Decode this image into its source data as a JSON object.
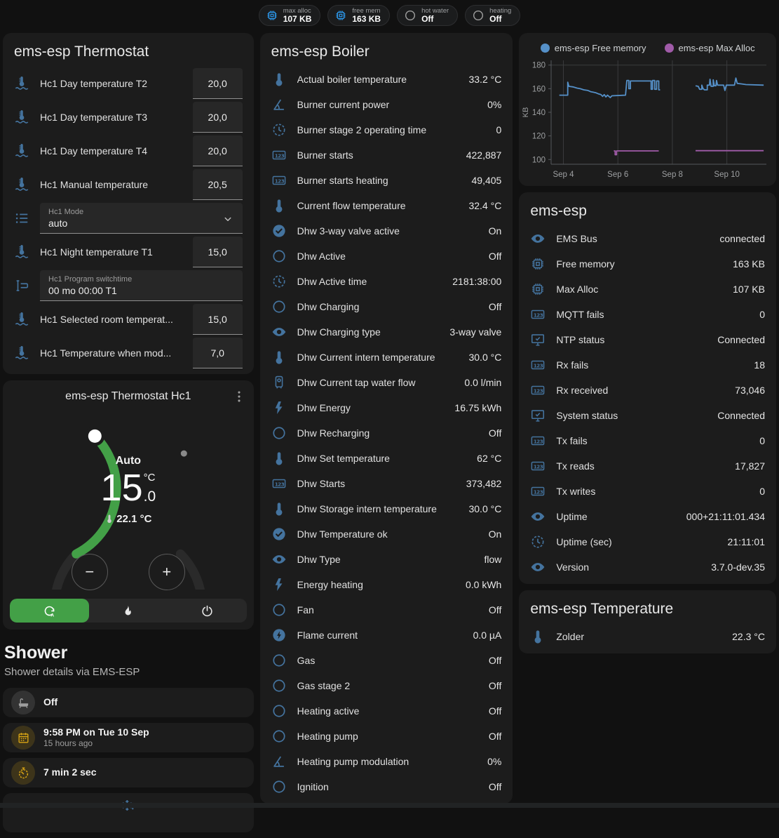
{
  "colors": {
    "icon_blue": "#44739e",
    "badge_blue": "#2d9bf0",
    "badge_gray": "#9e9e9e",
    "amber": "#d9a514",
    "gray": "#9e9e9e",
    "green": "#43a047",
    "track": "#2a2a2a",
    "free_memory_line": "#5590c8",
    "max_alloc_line": "#a05ba8"
  },
  "badges": [
    {
      "icon": "chip",
      "icon_color": "#2d9bf0",
      "label": "max alloc",
      "value": "107 KB"
    },
    {
      "icon": "chip",
      "icon_color": "#2d9bf0",
      "label": "free mem",
      "value": "163 KB"
    },
    {
      "icon": "circle",
      "icon_color": "#9e9e9e",
      "label": "hot water",
      "value": "Off"
    },
    {
      "icon": "circle",
      "icon_color": "#9e9e9e",
      "label": "heating",
      "value": "Off"
    }
  ],
  "thermostat": {
    "title": "ems-esp Thermostat",
    "rows": [
      {
        "type": "number",
        "icon": "thermometer-water",
        "label": "Hc1 Day temperature T2",
        "value": "20,0"
      },
      {
        "type": "number",
        "icon": "thermometer-water",
        "label": "Hc1 Day temperature T3",
        "value": "20,0"
      },
      {
        "type": "number",
        "icon": "thermometer-water",
        "label": "Hc1 Day temperature T4",
        "value": "20,0"
      },
      {
        "type": "number",
        "icon": "thermometer-water",
        "label": "Hc1 Manual temperature",
        "value": "20,5"
      },
      {
        "type": "select",
        "icon": "list",
        "label": "Hc1 Mode",
        "value": "auto"
      },
      {
        "type": "number",
        "icon": "thermometer-water",
        "label": "Hc1 Night temperature T1",
        "value": "15,0"
      },
      {
        "type": "textfield",
        "icon": "form-textbox",
        "label": "Hc1 Program switchtime",
        "value": "00 mo 00:00 T1"
      },
      {
        "type": "number",
        "icon": "thermometer-water",
        "label": "Hc1 Selected room temperat...",
        "value": "15,0"
      },
      {
        "type": "number",
        "icon": "thermometer-water",
        "label": "Hc1 Temperature when mod...",
        "value": "7,0"
      }
    ]
  },
  "dial": {
    "title": "ems-esp Thermostat Hc1",
    "mode": "Auto",
    "temp_int": "15",
    "temp_dec": ".0",
    "unit": "°C",
    "current": "22.1 °C",
    "minus": "−",
    "plus": "+",
    "modes": [
      "auto",
      "heat",
      "off"
    ],
    "active_mode": "auto"
  },
  "shower": {
    "title": "Shower",
    "subtitle": "Shower details via EMS-ESP",
    "tiles": [
      {
        "icon": "bathtub",
        "color": "#9e9e9e",
        "title": "Off",
        "subtitle": ""
      },
      {
        "icon": "calendar",
        "color": "#d9a514",
        "title": "9:58 PM on Tue 10 Sep",
        "subtitle": "15 hours ago"
      },
      {
        "icon": "timer",
        "color": "#d9a514",
        "title": "7 min 2 sec",
        "subtitle": ""
      },
      {
        "icon": "snowflake-alert",
        "color": "#44739e",
        "title": "",
        "subtitle": "",
        "centered": true
      }
    ]
  },
  "boiler": {
    "title": "ems-esp Boiler",
    "rows": [
      {
        "icon": "thermometer",
        "label": "Actual boiler temperature",
        "value": "33.2 °C"
      },
      {
        "icon": "angle-acute",
        "label": "Burner current power",
        "value": "0%"
      },
      {
        "icon": "clock",
        "label": "Burner stage 2 operating time",
        "value": "0"
      },
      {
        "icon": "counter",
        "label": "Burner starts",
        "value": "422,887"
      },
      {
        "icon": "counter",
        "label": "Burner starts heating",
        "value": "49,405"
      },
      {
        "icon": "thermometer",
        "label": "Current flow temperature",
        "value": "32.4 °C"
      },
      {
        "icon": "check-circle",
        "label": "Dhw 3-way valve active",
        "value": "On"
      },
      {
        "icon": "circle",
        "label": "Dhw Active",
        "value": "Off"
      },
      {
        "icon": "clock",
        "label": "Dhw Active time",
        "value": "2181:38:00"
      },
      {
        "icon": "circle",
        "label": "Dhw Charging",
        "value": "Off"
      },
      {
        "icon": "eye",
        "label": "Dhw Charging type",
        "value": "3-way valve"
      },
      {
        "icon": "thermometer",
        "label": "Dhw Current intern temperature",
        "value": "30.0 °C"
      },
      {
        "icon": "water-boiler",
        "label": "Dhw Current tap water flow",
        "value": "0.0 l/min"
      },
      {
        "icon": "flash",
        "label": "Dhw Energy",
        "value": "16.75 kWh"
      },
      {
        "icon": "circle",
        "label": "Dhw Recharging",
        "value": "Off"
      },
      {
        "icon": "thermometer",
        "label": "Dhw Set temperature",
        "value": "62 °C"
      },
      {
        "icon": "counter",
        "label": "Dhw Starts",
        "value": "373,482"
      },
      {
        "icon": "thermometer",
        "label": "Dhw Storage intern temperature",
        "value": "30.0 °C"
      },
      {
        "icon": "check-circle",
        "label": "Dhw Temperature ok",
        "value": "On"
      },
      {
        "icon": "eye",
        "label": "Dhw Type",
        "value": "flow"
      },
      {
        "icon": "flash",
        "label": "Energy heating",
        "value": "0.0 kWh"
      },
      {
        "icon": "circle",
        "label": "Fan",
        "value": "Off"
      },
      {
        "icon": "flash-circle",
        "label": "Flame current",
        "value": "0.0 µA"
      },
      {
        "icon": "circle",
        "label": "Gas",
        "value": "Off"
      },
      {
        "icon": "circle",
        "label": "Gas stage 2",
        "value": "Off"
      },
      {
        "icon": "circle",
        "label": "Heating active",
        "value": "Off"
      },
      {
        "icon": "circle",
        "label": "Heating pump",
        "value": "Off"
      },
      {
        "icon": "angle-acute",
        "label": "Heating pump modulation",
        "value": "0%"
      },
      {
        "icon": "circle",
        "label": "Ignition",
        "value": "Off"
      }
    ]
  },
  "emsesp": {
    "title": "ems-esp",
    "rows": [
      {
        "icon": "eye",
        "label": "EMS Bus",
        "value": "connected"
      },
      {
        "icon": "chip",
        "label": "Free memory",
        "value": "163 KB"
      },
      {
        "icon": "chip",
        "label": "Max Alloc",
        "value": "107 KB"
      },
      {
        "icon": "counter",
        "label": "MQTT fails",
        "value": "0"
      },
      {
        "icon": "monitor-check",
        "label": "NTP status",
        "value": "Connected"
      },
      {
        "icon": "counter",
        "label": "Rx fails",
        "value": "18"
      },
      {
        "icon": "counter",
        "label": "Rx received",
        "value": "73,046"
      },
      {
        "icon": "monitor-check",
        "label": "System status",
        "value": "Connected"
      },
      {
        "icon": "counter",
        "label": "Tx fails",
        "value": "0"
      },
      {
        "icon": "counter",
        "label": "Tx reads",
        "value": "17,827"
      },
      {
        "icon": "counter",
        "label": "Tx writes",
        "value": "0"
      },
      {
        "icon": "eye",
        "label": "Uptime",
        "value": "000+21:11:01.434"
      },
      {
        "icon": "clock",
        "label": "Uptime (sec)",
        "value": "21:11:01"
      },
      {
        "icon": "eye",
        "label": "Version",
        "value": "3.7.0-dev.35"
      }
    ]
  },
  "temperature": {
    "title": "ems-esp Temperature",
    "rows": [
      {
        "icon": "thermometer",
        "label": "Zolder",
        "value": "22.3 °C"
      }
    ]
  },
  "chart_data": {
    "type": "line",
    "title": "",
    "xlabel": "",
    "ylabel": "KB",
    "legend_position": "top",
    "grid": "x-only",
    "x_range": [
      3.55,
      11.45
    ],
    "y_range": [
      96,
      184
    ],
    "y_ticks": [
      100,
      120,
      140,
      160,
      180
    ],
    "x_ticks": [
      {
        "v": 4,
        "label": "Sep 4"
      },
      {
        "v": 6,
        "label": "Sep 6"
      },
      {
        "v": 8,
        "label": "Sep 8"
      },
      {
        "v": 10,
        "label": "Sep 10"
      }
    ],
    "series": [
      {
        "name": "ems-esp Free memory",
        "color": "#5590c8",
        "segments": [
          [
            [
              3.85,
              154.5
            ],
            [
              4.16,
              154.5
            ],
            [
              4.16,
              165.5
            ],
            [
              4.2,
              162
            ],
            [
              4.35,
              161.5
            ],
            [
              4.5,
              160.5
            ],
            [
              4.62,
              160
            ],
            [
              4.75,
              159
            ],
            [
              4.9,
              158.5
            ],
            [
              5.0,
              157.5
            ],
            [
              5.1,
              157
            ],
            [
              5.2,
              156.5
            ],
            [
              5.3,
              155.5
            ],
            [
              5.38,
              155
            ],
            [
              5.44,
              153.5
            ],
            [
              5.5,
              155
            ],
            [
              5.56,
              153
            ],
            [
              5.62,
              154.5
            ],
            [
              5.72,
              152.5
            ],
            [
              5.78,
              154
            ],
            [
              6.28,
              154.5
            ],
            [
              6.33,
              167
            ],
            [
              6.4,
              167
            ],
            [
              6.4,
              160
            ],
            [
              6.46,
              160
            ],
            [
              6.46,
              166.5
            ],
            [
              7.22,
              166.5
            ],
            [
              7.22,
              159.5
            ],
            [
              7.27,
              159.5
            ],
            [
              7.27,
              167
            ],
            [
              7.35,
              167
            ],
            [
              7.35,
              159.5
            ],
            [
              7.42,
              159.5
            ],
            [
              7.42,
              166.5
            ],
            [
              7.5,
              166.5
            ],
            [
              7.5,
              159
            ],
            [
              7.55,
              159
            ]
          ],
          [
            [
              8.85,
              162.5
            ],
            [
              8.95,
              162
            ],
            [
              9.0,
              159.5
            ],
            [
              9.08,
              159.5
            ],
            [
              9.08,
              163
            ],
            [
              9.13,
              160
            ],
            [
              9.18,
              159
            ],
            [
              9.28,
              159
            ],
            [
              9.28,
              163
            ],
            [
              9.36,
              163
            ],
            [
              9.38,
              168
            ],
            [
              9.42,
              162
            ],
            [
              9.5,
              162
            ],
            [
              9.5,
              167.5
            ],
            [
              9.54,
              162.5
            ],
            [
              9.6,
              162.5
            ],
            [
              9.62,
              167
            ],
            [
              9.66,
              163
            ],
            [
              9.88,
              163
            ],
            [
              9.93,
              158.5
            ],
            [
              9.98,
              163
            ],
            [
              10.28,
              163
            ],
            [
              10.33,
              169
            ],
            [
              10.38,
              164.5
            ],
            [
              10.55,
              164
            ],
            [
              10.7,
              163.5
            ],
            [
              11.35,
              163
            ]
          ]
        ]
      },
      {
        "name": "ems-esp Max Alloc",
        "color": "#a05ba8",
        "segments": [
          [
            [
              5.85,
              107.3
            ],
            [
              5.9,
              107.3
            ],
            [
              5.9,
              104
            ],
            [
              5.95,
              104
            ],
            [
              5.95,
              107.3
            ],
            [
              7.5,
              107.3
            ]
          ],
          [
            [
              8.85,
              107.5
            ],
            [
              11.35,
              107.5
            ]
          ]
        ]
      }
    ]
  }
}
